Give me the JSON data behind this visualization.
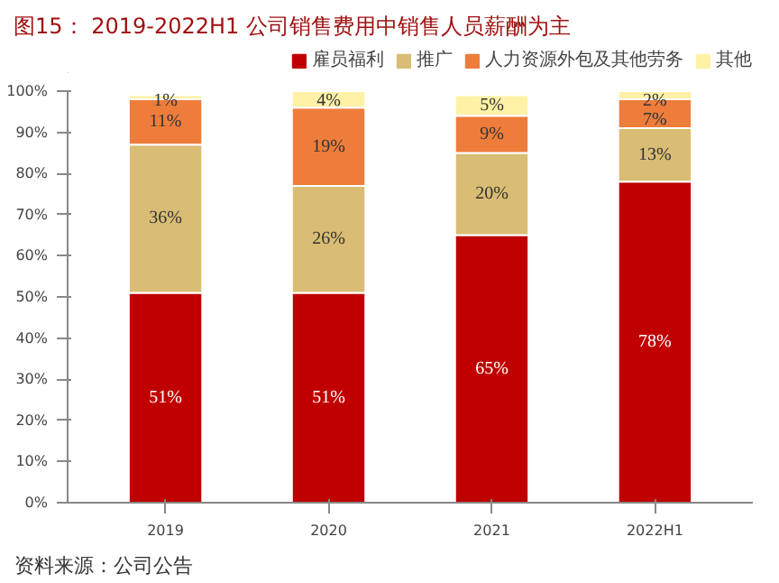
{
  "chart_data": {
    "type": "bar",
    "stacked": true,
    "title": "图15：  2019-2022H1 公司销售费用中销售人员薪酬为主",
    "categories": [
      "2019",
      "2020",
      "2021",
      "2022H1"
    ],
    "series": [
      {
        "name": "雇员福利",
        "color": "#c00000",
        "values": [
          51,
          51,
          65,
          78
        ],
        "value_labels": [
          "51%",
          "51%",
          "65%",
          "78%"
        ]
      },
      {
        "name": "推广",
        "color": "#d9bd74",
        "values": [
          36,
          26,
          20,
          13
        ],
        "value_labels": [
          "36%",
          "26%",
          "20%",
          "13%"
        ]
      },
      {
        "name": "人力资源外包及其他劳务",
        "color": "#ee7d3c",
        "values": [
          11,
          19,
          9,
          7
        ],
        "value_labels": [
          "11%",
          "19%",
          "9%",
          "7%"
        ]
      },
      {
        "name": "其他",
        "color": "#fff2a6",
        "values": [
          1,
          4,
          5,
          2
        ],
        "value_labels": [
          "1%",
          "4%",
          "5%",
          "2%"
        ]
      }
    ],
    "ylim": [
      0,
      100
    ],
    "yticks": [
      {
        "value": 0,
        "label": "0%"
      },
      {
        "value": 10,
        "label": "10%"
      },
      {
        "value": 20,
        "label": "20%"
      },
      {
        "value": 30,
        "label": "30%"
      },
      {
        "value": 40,
        "label": "40%"
      },
      {
        "value": 50,
        "label": "50%"
      },
      {
        "value": 60,
        "label": "60%"
      },
      {
        "value": 70,
        "label": "70%"
      },
      {
        "value": 80,
        "label": "80%"
      },
      {
        "value": 90,
        "label": "90%"
      },
      {
        "value": 100,
        "label": "100%"
      }
    ],
    "legend": "top",
    "grid": false,
    "annotations": [
      "资料来源：公司公告"
    ]
  }
}
